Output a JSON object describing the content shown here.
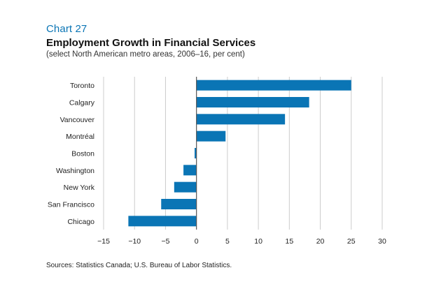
{
  "header": {
    "chart_number": "Chart 27",
    "title": "Employment Growth in Financial Services",
    "subtitle": "(select North American metro areas, 2006–16, per cent)"
  },
  "footer": {
    "source": "Sources: Statistics Canada; U.S. Bureau of Labor Statistics."
  },
  "colors": {
    "bar": "#0a75b5",
    "grid": "#cccccc",
    "axis": "#555555",
    "text": "#222222"
  },
  "chart_data": {
    "type": "bar",
    "orientation": "horizontal",
    "title": "Employment Growth in Financial Services",
    "subtitle": "(select North American metro areas, 2006–16, per cent)",
    "categories": [
      "Toronto",
      "Calgary",
      "Vancouver",
      "Montréal",
      "Boston",
      "Washington",
      "New York",
      "San Francisco",
      "Chicago"
    ],
    "values": [
      25,
      18.2,
      14.3,
      4.7,
      -0.3,
      -2.1,
      -3.6,
      -5.7,
      -11
    ],
    "xlim": [
      -15,
      30
    ],
    "xticks": [
      "−15",
      "−10",
      "−5",
      "0",
      "5",
      "10",
      "15",
      "20",
      "25",
      "30"
    ],
    "xtick_values": [
      -15,
      -10,
      -5,
      0,
      5,
      10,
      15,
      20,
      25,
      30
    ],
    "grid": true,
    "legend": "none"
  }
}
